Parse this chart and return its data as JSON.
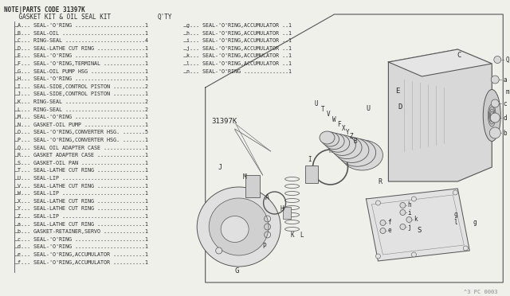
{
  "title_note": "NOTE|PARTS CODE 31397K",
  "title_kit": "    GASKET KIT & OIL SEAL KIT",
  "title_qty": "Q'TY",
  "part_number": "31397K",
  "bg_color": "#f0f0eb",
  "text_color": "#2a2a2a",
  "line_color": "#555555",
  "left_parts": [
    [
      "A",
      "SEAL-'O'RING",
      "1"
    ],
    [
      "B",
      "SEAL-OIL",
      "1"
    ],
    [
      "C",
      "RING-SEAL",
      "4"
    ],
    [
      "D",
      "SEAL-LATHE CUT RING",
      "1"
    ],
    [
      "E",
      "SEAL-'O'RING",
      "1"
    ],
    [
      "F",
      "SEAL-'O'RING,TERMINAL",
      "1"
    ],
    [
      "G",
      "SEAL-OIL PUMP HSG",
      "1"
    ],
    [
      "H",
      "SEAL-'O'RING",
      "1"
    ],
    [
      "I",
      "SEAL-SIDE,CONTROL PISTON",
      "2"
    ],
    [
      "J",
      "SEAL-SIDE,CONTROL PISTON",
      "1"
    ],
    [
      "K",
      "RING-SEAL",
      "2"
    ],
    [
      "L",
      "RING-SEAL",
      "2"
    ],
    [
      "M",
      "SEAL-'O'RING",
      "1"
    ],
    [
      "N",
      "GASKET-OIL PUMP",
      "1"
    ],
    [
      "O",
      "SEAL-'O'RING,CONVERTER HSG.",
      "5"
    ],
    [
      "P",
      "SEAL-'O'RING,CONVERTER HSG.",
      "1"
    ],
    [
      "Q",
      "SEAL OIL ADAPTER CASE",
      "1"
    ],
    [
      "R",
      "GASKET ADAPTER CASE",
      "1"
    ],
    [
      "S",
      "GASKET-OIL PAN",
      "1"
    ],
    [
      "T",
      "SEAL-LATHE CUT RING",
      "1"
    ],
    [
      "U",
      "SEAL-LIP",
      "1"
    ],
    [
      "V",
      "SEAL-LATHE CUT RING",
      "1"
    ],
    [
      "W",
      "SEAL-LIP",
      "1"
    ],
    [
      "X",
      "SEAL-LATHE CUT RING",
      "1"
    ],
    [
      "Y",
      "SEAL-LATHE CUT RING",
      "1"
    ],
    [
      "Z",
      "SEAL-LIP",
      "1"
    ],
    [
      "a",
      "SEAL-LATHE CUT RING",
      "1"
    ],
    [
      "b",
      "GASKET-RETAINER,SERVO",
      "1"
    ],
    [
      "c",
      "SEAL-'O'RING",
      "1"
    ],
    [
      "d",
      "SEAL-'O'RING",
      "1"
    ],
    [
      "e",
      "SEAL-'O'RING,ACCUMULATOR",
      "1"
    ],
    [
      "f",
      "SEAL-'O'RING,ACCUMULATOR",
      "1"
    ]
  ],
  "right_parts": [
    [
      "g",
      "SEAL-'O'RING,ACCUMULATOR",
      "1"
    ],
    [
      "h",
      "SEAL-'O'RING,ACCUMULATOR",
      "1"
    ],
    [
      "i",
      "SEAL-'O'RING,ACCUMULATOR",
      "1"
    ],
    [
      "j",
      "SEAL-'O'RING,ACCUMULATOR",
      "1"
    ],
    [
      "k",
      "SEAL-'O'RING,ACCUMULATOR",
      "1"
    ],
    [
      "l",
      "SEAL-'O'RING,ACCUMULATOR",
      "1"
    ],
    [
      "n",
      "SEAL-'O'RING",
      "1"
    ]
  ],
  "footer": "^3 PC 0003"
}
